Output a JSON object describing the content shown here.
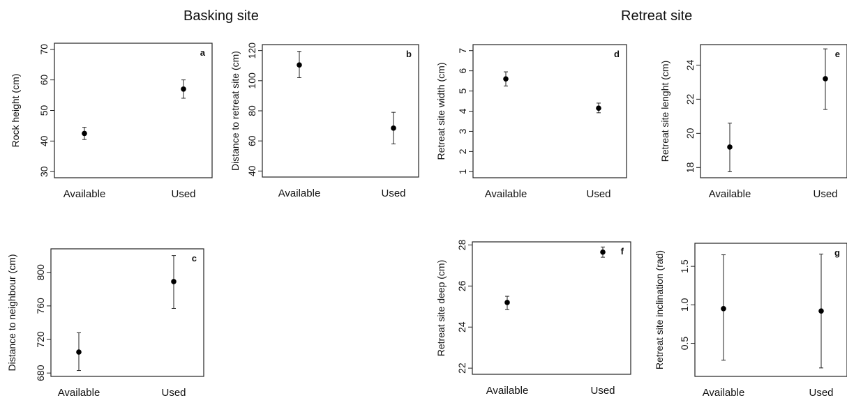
{
  "section_titles": {
    "basking": "Basking site",
    "retreat": "Retreat site"
  },
  "chart_data": [
    {
      "id": "a",
      "type": "scatter",
      "title": "",
      "panel_letter": "a",
      "xlabel": "",
      "ylabel": "Rock height (cm)",
      "categories": [
        "Available",
        "Used"
      ],
      "ylim": [
        28,
        72
      ],
      "yticks": [
        30,
        40,
        50,
        60,
        70
      ],
      "values": [
        42.5,
        57
      ],
      "lower": [
        40.5,
        54
      ],
      "upper": [
        44.5,
        60
      ],
      "grid": false
    },
    {
      "id": "b",
      "type": "scatter",
      "title": "",
      "panel_letter": "b",
      "xlabel": "",
      "ylabel": "Distance to retreat site (cm)",
      "categories": [
        "Available",
        "Used"
      ],
      "ylim": [
        36,
        124
      ],
      "yticks": [
        40,
        60,
        80,
        100,
        120
      ],
      "values": [
        110.5,
        68.5
      ],
      "lower": [
        102,
        58
      ],
      "upper": [
        119.5,
        79
      ],
      "grid": false
    },
    {
      "id": "c",
      "type": "scatter",
      "title": "",
      "panel_letter": "c",
      "xlabel": "",
      "ylabel": "Distance to neighbour (cm)",
      "categories": [
        "Available",
        "Used"
      ],
      "ylim": [
        676,
        828
      ],
      "yticks": [
        680,
        720,
        760,
        800
      ],
      "values": [
        705,
        789
      ],
      "lower": [
        683,
        757
      ],
      "upper": [
        728,
        820
      ],
      "grid": false
    },
    {
      "id": "d",
      "type": "scatter",
      "title": "",
      "panel_letter": "d",
      "xlabel": "",
      "ylabel": "Retreat site width (cm)",
      "categories": [
        "Available",
        "Used"
      ],
      "ylim": [
        0.7,
        7.3
      ],
      "yticks": [
        1,
        2,
        3,
        4,
        5,
        6,
        7
      ],
      "values": [
        5.6,
        4.15
      ],
      "lower": [
        5.25,
        3.92
      ],
      "upper": [
        5.95,
        4.4
      ],
      "grid": false
    },
    {
      "id": "e",
      "type": "scatter",
      "title": "",
      "panel_letter": "e",
      "xlabel": "",
      "ylabel": "Retreat site lenght (cm)",
      "categories": [
        "Available",
        "Used"
      ],
      "ylim": [
        17.4,
        25.2
      ],
      "yticks": [
        18,
        20,
        22,
        24
      ],
      "values": [
        19.2,
        23.2
      ],
      "lower": [
        17.75,
        21.4
      ],
      "upper": [
        20.6,
        24.95
      ],
      "grid": false
    },
    {
      "id": "f",
      "type": "scatter",
      "title": "",
      "panel_letter": "f",
      "xlabel": "",
      "ylabel": "Retreat site deep (cm)",
      "categories": [
        "Available",
        "Used"
      ],
      "ylim": [
        21.7,
        28.15
      ],
      "yticks": [
        22,
        24,
        26,
        28
      ],
      "values": [
        25.2,
        27.65
      ],
      "lower": [
        24.85,
        27.4
      ],
      "upper": [
        25.5,
        27.9
      ],
      "grid": false
    },
    {
      "id": "g",
      "type": "scatter",
      "title": "",
      "panel_letter": "g",
      "xlabel": "",
      "ylabel": "Retreat site inclination (rad)",
      "categories": [
        "Available",
        "Used"
      ],
      "ylim": [
        0.07,
        1.8
      ],
      "yticks": [
        0.5,
        1.0,
        1.5
      ],
      "ytick_labels": [
        "0.5",
        "1.0",
        "1.5"
      ],
      "values": [
        0.95,
        0.92
      ],
      "lower": [
        0.28,
        0.18
      ],
      "upper": [
        1.65,
        1.66
      ],
      "grid": false
    }
  ]
}
